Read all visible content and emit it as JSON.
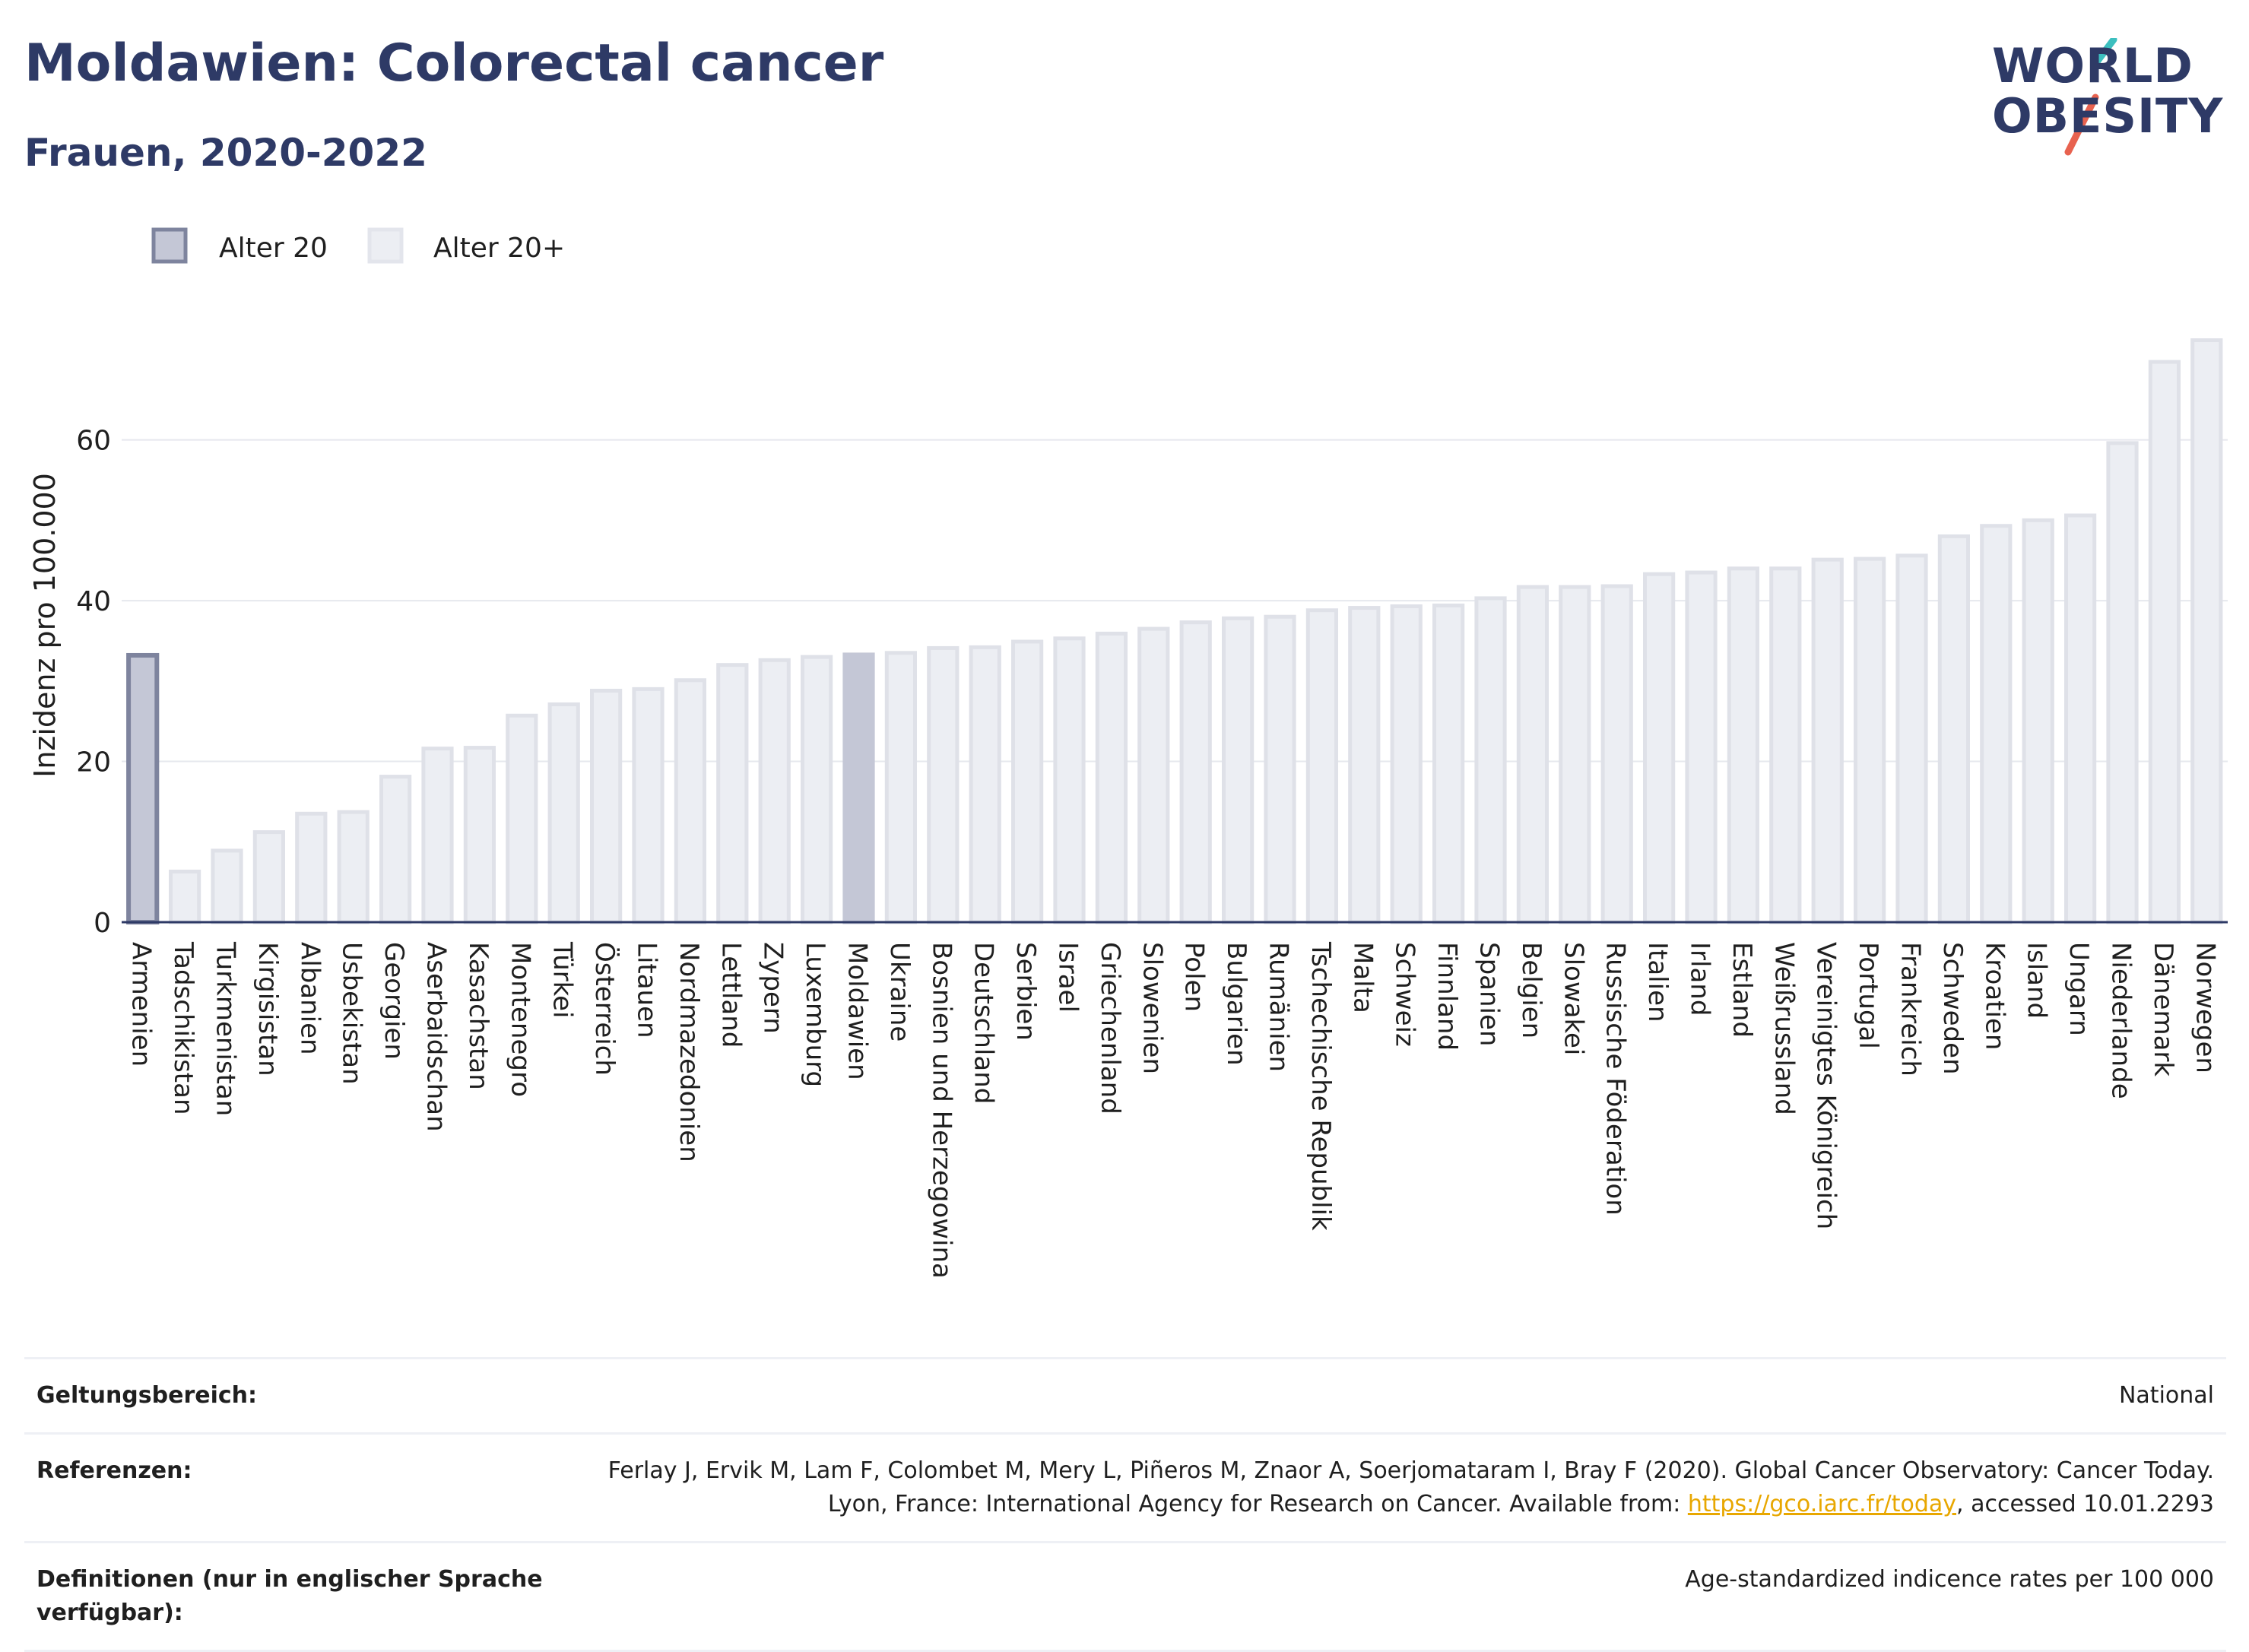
{
  "header": {
    "title": "Moldawien: Colorectal cancer",
    "subtitle": "Frauen, 2020-2022"
  },
  "logo": {
    "line1": "WORLD",
    "line2": "OBESITY"
  },
  "colors": {
    "highlight_fill": "#c4c7d6",
    "highlight_stroke": "#7e849e",
    "bar_fill": "#eceef3",
    "bar_stroke": "#dfe1e8",
    "title": "#2e3a66",
    "logo_teal": "#3dbfbf",
    "logo_coral": "#e8624f"
  },
  "legend": {
    "items": [
      {
        "label": "Alter 20",
        "style": "highlight"
      },
      {
        "label": "Alter 20+",
        "style": "normal"
      }
    ]
  },
  "chart_data": {
    "type": "bar",
    "ylabel": "Inzidenz pro 100.000",
    "xlabel": "",
    "ylim": [
      0,
      75
    ],
    "yticks": [
      0,
      20,
      40,
      60
    ],
    "grid": true,
    "legend_position": "top-left",
    "highlight": [
      "Armenien",
      "Moldawien"
    ],
    "categories": [
      "Armenien",
      "Tadschikistan",
      "Turkmenistan",
      "Kirgisistan",
      "Albanien",
      "Usbekistan",
      "Georgien",
      "Aserbaidschan",
      "Kasachstan",
      "Montenegro",
      "Türkei",
      "Österreich",
      "Litauen",
      "Nordmazedonien",
      "Lettland",
      "Zypern",
      "Luxemburg",
      "Moldawien",
      "Ukraine",
      "Bosnien und Herzegowina",
      "Deutschland",
      "Serbien",
      "Israel",
      "Griechenland",
      "Slowenien",
      "Polen",
      "Bulgarien",
      "Rumänien",
      "Tschechische Republik",
      "Malta",
      "Schweiz",
      "Finnland",
      "Spanien",
      "Belgien",
      "Slowakei",
      "Russische Föderation",
      "Italien",
      "Irland",
      "Estland",
      "Weißrussland",
      "Vereinigtes Königreich",
      "Portugal",
      "Frankreich",
      "Schweden",
      "Kroatien",
      "Island",
      "Ungarn",
      "Niederlande",
      "Dänemark",
      "Norwegen"
    ],
    "values": [
      33.2,
      6.3,
      8.9,
      11.2,
      13.5,
      13.7,
      18.1,
      21.6,
      21.7,
      25.7,
      27.1,
      28.8,
      29.0,
      30.1,
      32.0,
      32.6,
      33.0,
      33.3,
      33.5,
      34.1,
      34.2,
      34.9,
      35.3,
      35.9,
      36.5,
      37.3,
      37.8,
      38.0,
      38.8,
      39.1,
      39.3,
      39.4,
      40.3,
      41.7,
      41.7,
      41.8,
      43.3,
      43.5,
      44.0,
      44.0,
      45.1,
      45.2,
      45.6,
      48.0,
      49.3,
      50.0,
      50.6,
      59.6,
      69.7,
      72.4
    ]
  },
  "info": {
    "scope_label": "Geltungsbereich:",
    "scope_value": "National",
    "refs_label": "Referenzen:",
    "refs_text_before": "Ferlay J, Ervik M, Lam F, Colombet M, Mery L, Piñeros M, Znaor A, Soerjomataram I, Bray F (2020). Global Cancer Observatory: Cancer Today. Lyon, France: International Agency for Research on Cancer. Available from: ",
    "refs_link": "https://gco.iarc.fr/today",
    "refs_text_after": ", accessed 10.01.2293",
    "defs_label": "Definitionen (nur in englischer Sprache verfügbar):",
    "defs_value": "Age-standardized indicence rates per 100 000"
  }
}
